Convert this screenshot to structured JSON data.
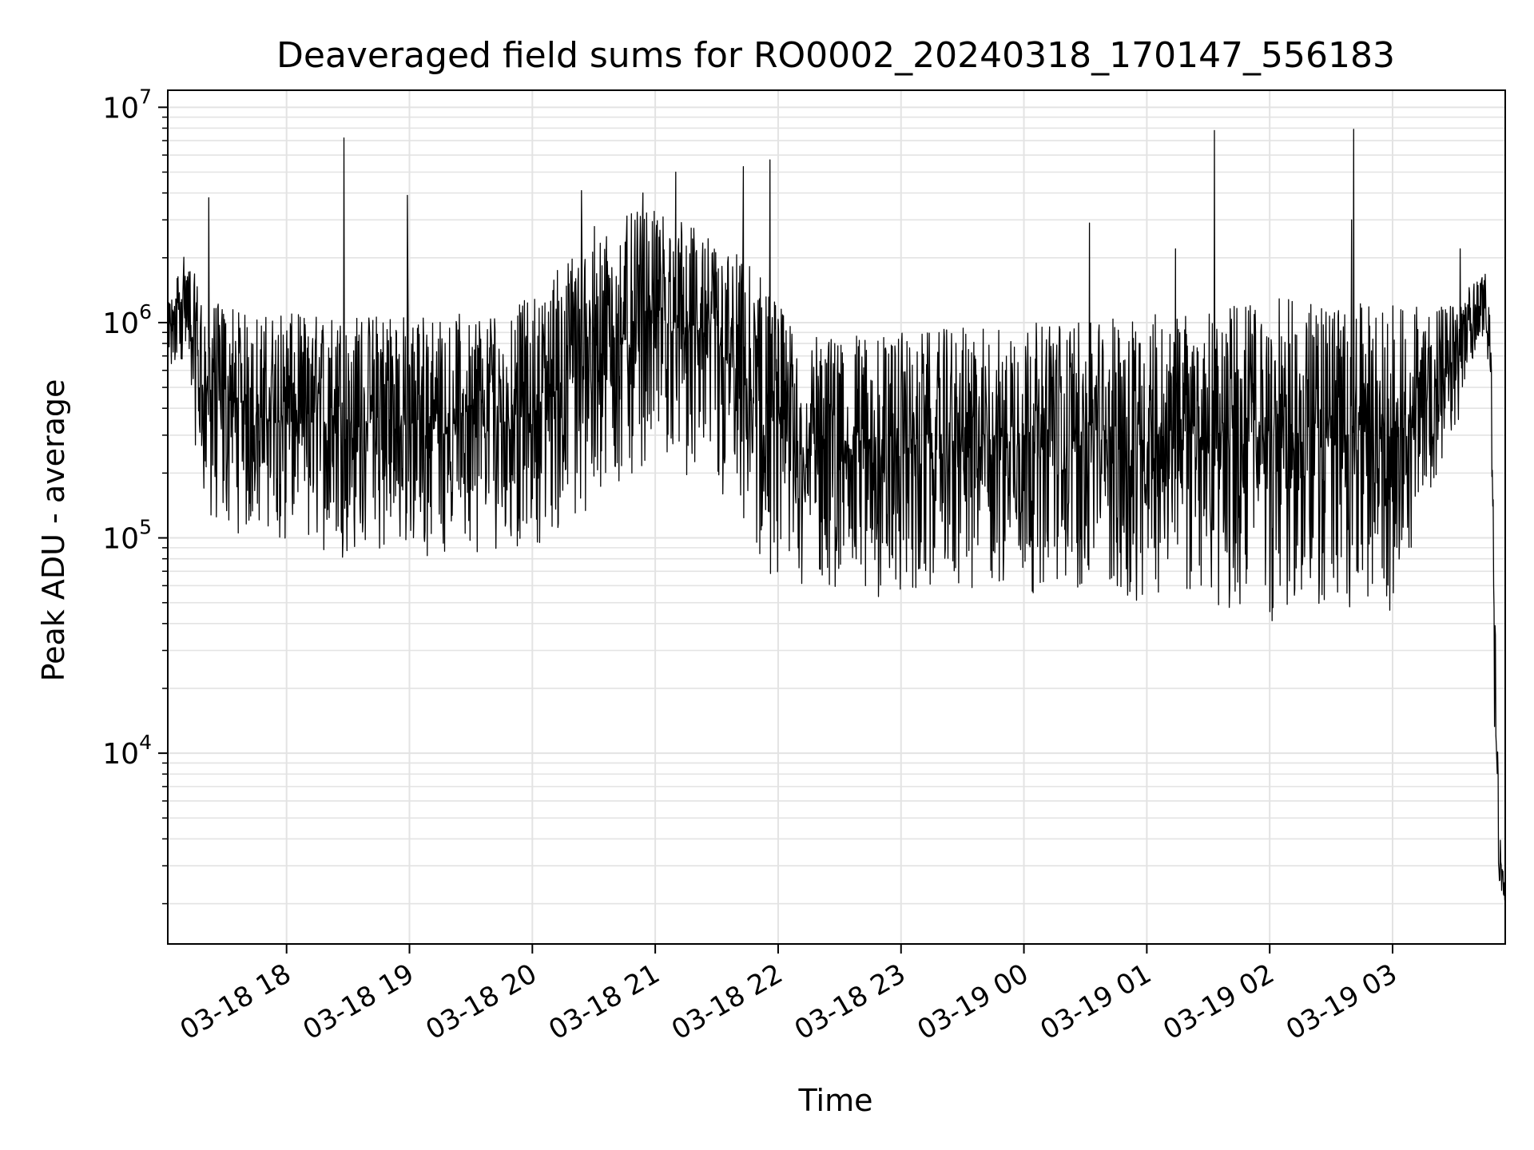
{
  "chart_data": {
    "type": "line",
    "title": "Deaveraged field sums for RO0002_20240318_170147_556183",
    "xlabel": "Time",
    "ylabel": "Peak ADU - average",
    "y_scale": "log",
    "grid": "on (major and minor)",
    "x_range": [
      "2024-03-18 17:02",
      "2024-03-19 03:55"
    ],
    "ylim": [
      1300,
      12000000
    ],
    "x_ticks": [
      {
        "time": "2024-03-18 18:00",
        "label": "03-18 18"
      },
      {
        "time": "2024-03-18 19:00",
        "label": "03-18 19"
      },
      {
        "time": "2024-03-18 20:00",
        "label": "03-18 20"
      },
      {
        "time": "2024-03-18 21:00",
        "label": "03-18 21"
      },
      {
        "time": "2024-03-18 22:00",
        "label": "03-18 22"
      },
      {
        "time": "2024-03-18 23:00",
        "label": "03-18 23"
      },
      {
        "time": "2024-03-19 00:00",
        "label": "03-19 00"
      },
      {
        "time": "2024-03-19 01:00",
        "label": "03-19 01"
      },
      {
        "time": "2024-03-19 02:00",
        "label": "03-19 02"
      },
      {
        "time": "2024-03-19 03:00",
        "label": "03-19 03"
      }
    ],
    "y_ticks": [
      {
        "value": 10000,
        "base": "10",
        "exp": "4"
      },
      {
        "value": 100000,
        "base": "10",
        "exp": "5"
      },
      {
        "value": 1000000,
        "base": "10",
        "exp": "6"
      },
      {
        "value": 10000000,
        "base": "10",
        "exp": "7"
      }
    ],
    "series": [
      {
        "color": "#000000",
        "envelope": [
          {
            "time": "2024-03-18 17:02",
            "low": 500000,
            "high": 1200000
          },
          {
            "time": "2024-03-18 17:10",
            "low": 700000,
            "high": 2200000
          },
          {
            "time": "2024-03-18 17:20",
            "low": 120000,
            "high": 1300000
          },
          {
            "time": "2024-03-18 17:40",
            "low": 100000,
            "high": 1100000
          },
          {
            "time": "2024-03-18 18:30",
            "low": 80000,
            "high": 1100000
          },
          {
            "time": "2024-03-18 19:30",
            "low": 80000,
            "high": 1100000
          },
          {
            "time": "2024-03-18 20:00",
            "low": 90000,
            "high": 1300000
          },
          {
            "time": "2024-03-18 20:30",
            "low": 120000,
            "high": 2800000
          },
          {
            "time": "2024-03-18 21:00",
            "low": 250000,
            "high": 3500000
          },
          {
            "time": "2024-03-18 21:30",
            "low": 150000,
            "high": 2500000
          },
          {
            "time": "2024-03-18 21:50",
            "low": 70000,
            "high": 1800000
          },
          {
            "time": "2024-03-18 22:10",
            "low": 60000,
            "high": 850000
          },
          {
            "time": "2024-03-18 23:00",
            "low": 50000,
            "high": 900000
          },
          {
            "time": "2024-03-19 00:00",
            "low": 55000,
            "high": 1000000
          },
          {
            "time": "2024-03-19 01:00",
            "low": 50000,
            "high": 1100000
          },
          {
            "time": "2024-03-19 02:00",
            "low": 40000,
            "high": 1300000
          },
          {
            "time": "2024-03-19 03:00",
            "low": 45000,
            "high": 1200000
          },
          {
            "time": "2024-03-19 03:30",
            "low": 300000,
            "high": 1200000
          },
          {
            "time": "2024-03-19 03:45",
            "low": 900000,
            "high": 1800000
          },
          {
            "time": "2024-03-19 03:48",
            "low": 500000,
            "high": 1000000
          },
          {
            "time": "2024-03-19 03:50",
            "low": 5000,
            "high": 50000
          },
          {
            "time": "2024-03-19 03:52",
            "low": 2500,
            "high": 4500
          },
          {
            "time": "2024-03-19 03:55",
            "low": 1900,
            "high": 2500
          }
        ],
        "spikes": [
          {
            "time": "2024-03-18 17:22",
            "value": 3800000
          },
          {
            "time": "2024-03-18 18:28",
            "value": 7200000
          },
          {
            "time": "2024-03-18 18:59",
            "value": 3900000
          },
          {
            "time": "2024-03-18 20:24",
            "value": 4100000
          },
          {
            "time": "2024-03-18 20:54",
            "value": 4000000
          },
          {
            "time": "2024-03-18 21:10",
            "value": 5000000
          },
          {
            "time": "2024-03-18 21:43",
            "value": 5300000
          },
          {
            "time": "2024-03-18 21:56",
            "value": 5700000
          },
          {
            "time": "2024-03-19 00:32",
            "value": 2900000
          },
          {
            "time": "2024-03-19 01:14",
            "value": 2200000
          },
          {
            "time": "2024-03-19 01:33",
            "value": 7800000
          },
          {
            "time": "2024-03-19 02:40",
            "value": 3000000
          },
          {
            "time": "2024-03-19 02:41",
            "value": 7900000
          },
          {
            "time": "2024-03-19 03:33",
            "value": 2200000
          }
        ]
      }
    ]
  }
}
